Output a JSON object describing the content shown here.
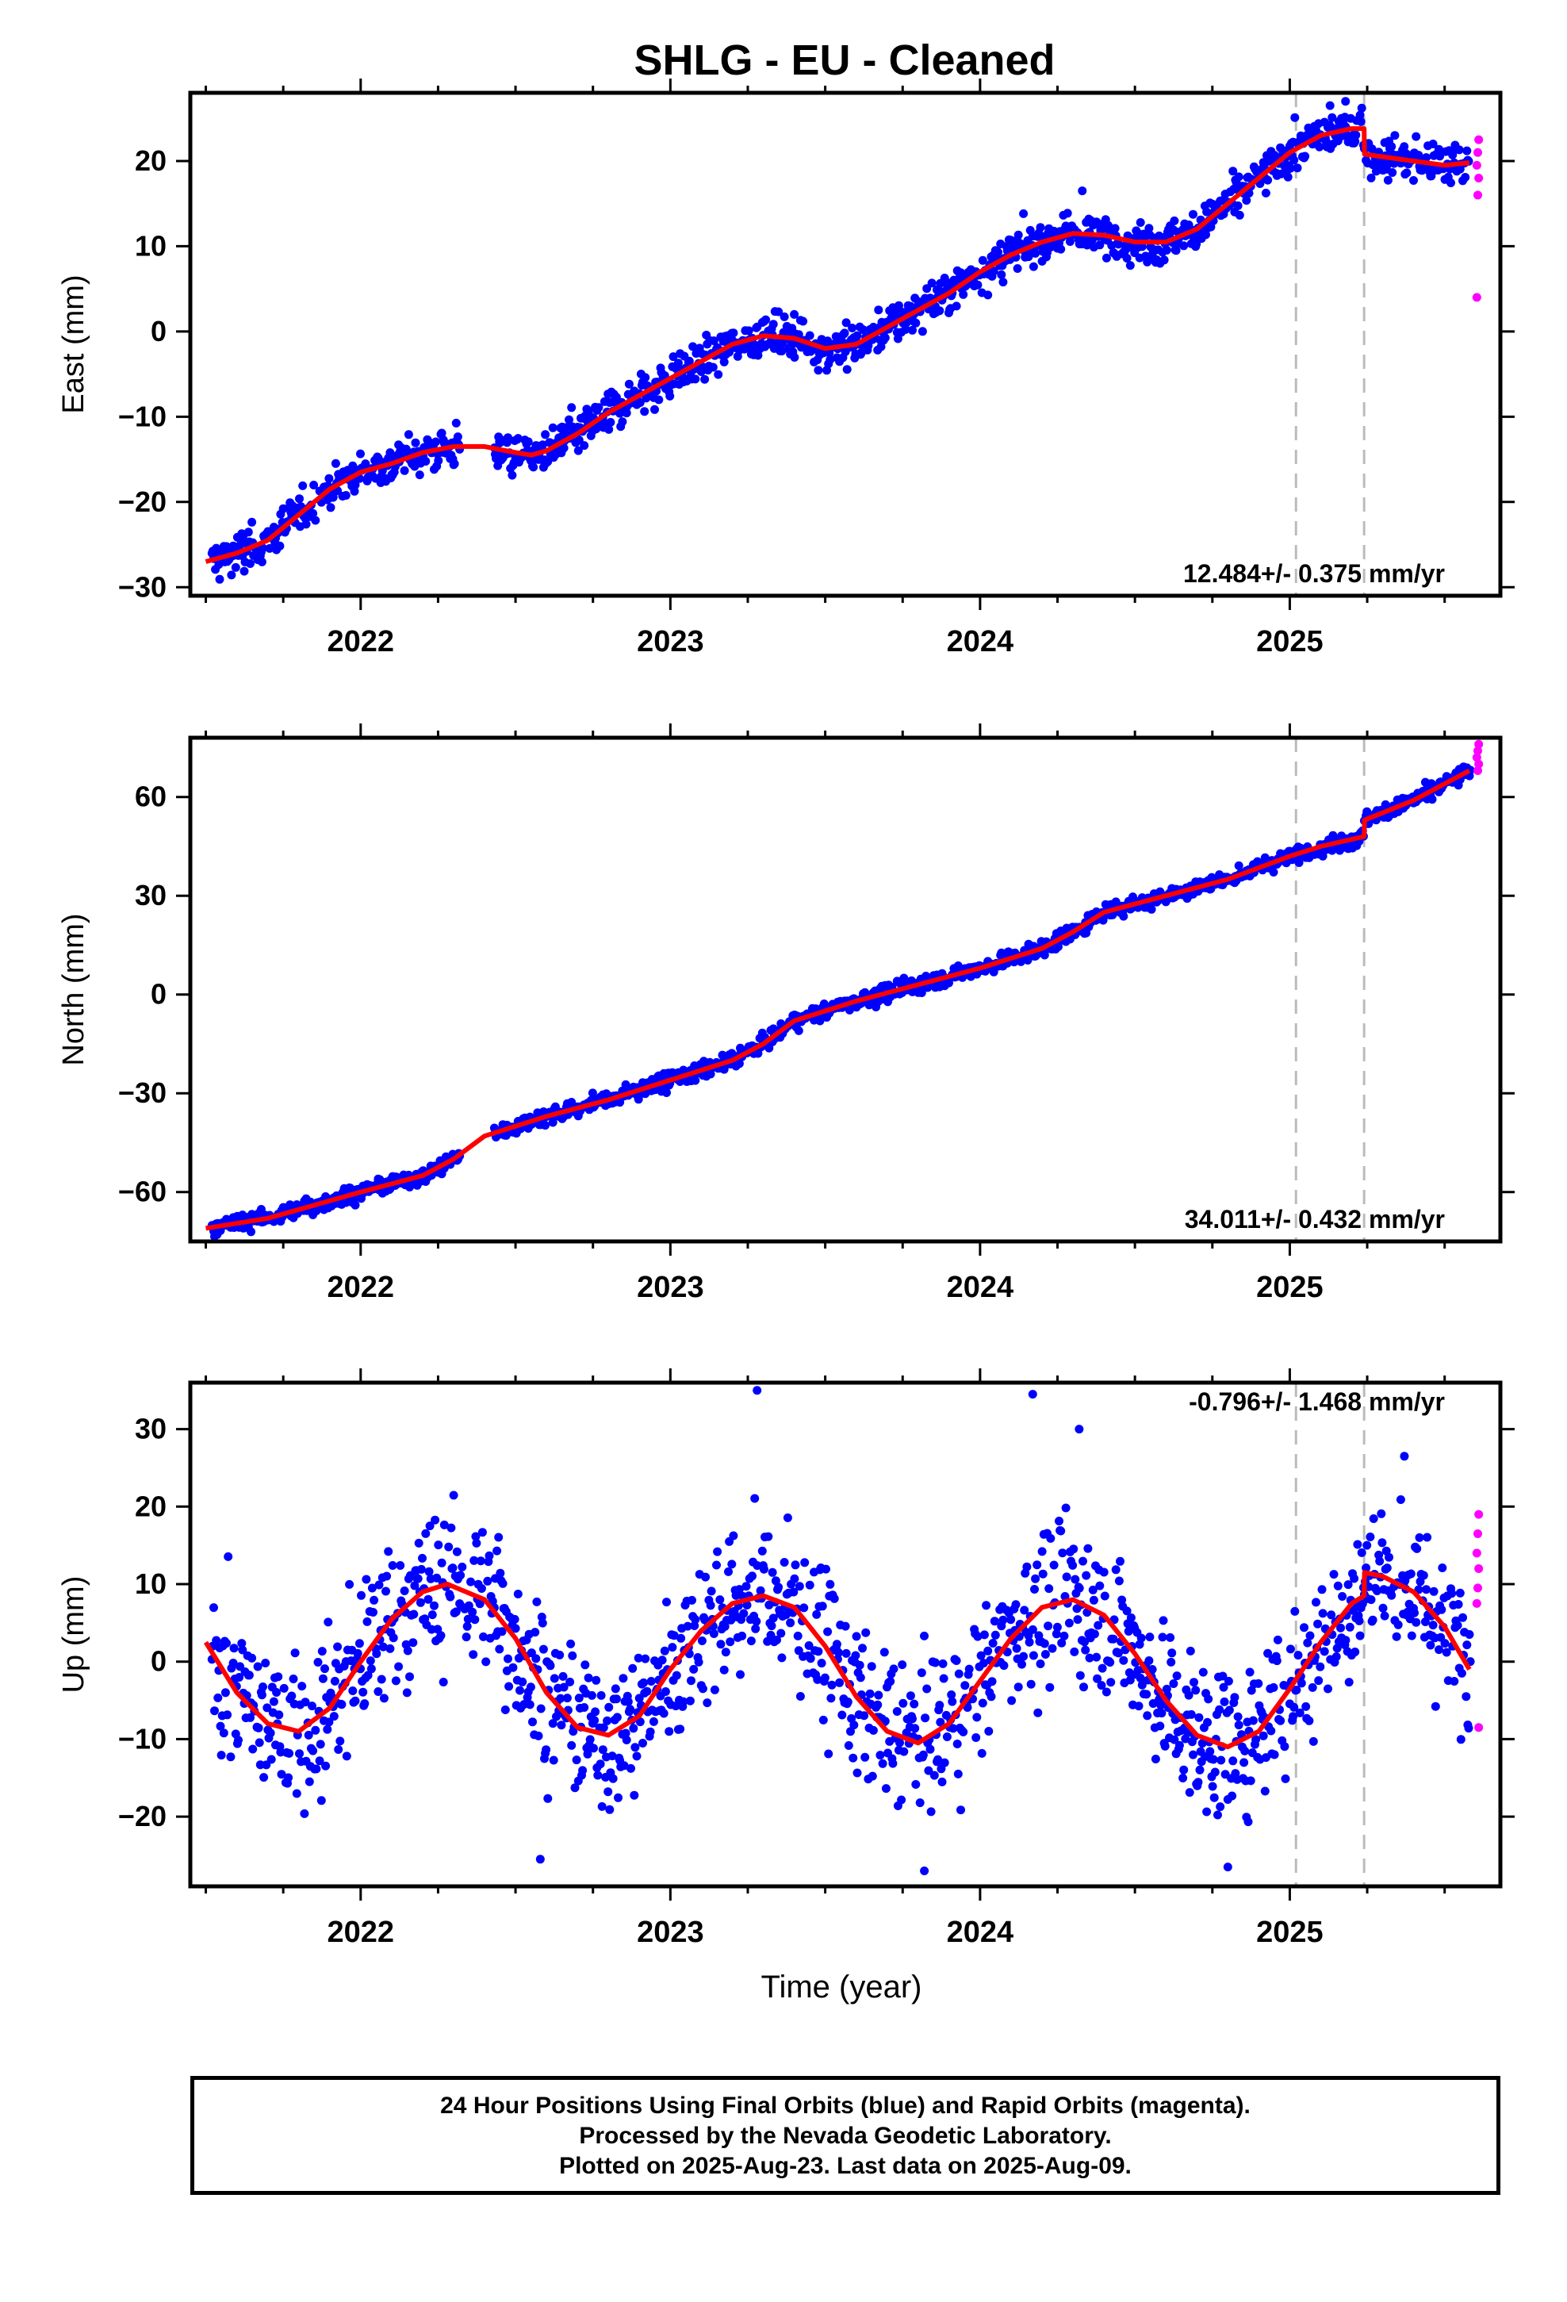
{
  "chart_data": {
    "type": "scatter",
    "title": "SHLG  - EU - Cleaned",
    "xlabel": "Time (year)",
    "xlim": [
      2021.45,
      2025.68
    ],
    "xticks": [
      2022,
      2023,
      2024,
      2025
    ],
    "break_lines": [
      2025.02,
      2025.24
    ],
    "last_rapid_epoch": 2025.61,
    "colors": {
      "final": "#0000ff",
      "rapid": "#ff00ff",
      "model": "#ff0000",
      "breaks": "#bbbbbb"
    },
    "panels": [
      {
        "id": "east",
        "ylabel": "East (mm)",
        "ylim": [
          -31,
          28
        ],
        "yticks": [
          -30,
          -20,
          -10,
          0,
          10,
          20
        ],
        "rate_label": "12.484+/- 0.375 mm/yr",
        "model": [
          [
            2021.5,
            -27.0
          ],
          [
            2021.6,
            -26.0
          ],
          [
            2021.7,
            -24.5
          ],
          [
            2021.8,
            -21.5
          ],
          [
            2021.9,
            -18.5
          ],
          [
            2022.0,
            -16.5
          ],
          [
            2022.1,
            -15.5
          ],
          [
            2022.2,
            -14.2
          ],
          [
            2022.3,
            -13.5
          ],
          [
            2022.4,
            -13.5
          ],
          [
            2022.5,
            -14.2
          ],
          [
            2022.55,
            -14.5
          ],
          [
            2022.6,
            -14.0
          ],
          [
            2022.7,
            -12.0
          ],
          [
            2022.8,
            -9.5
          ],
          [
            2022.9,
            -7.5
          ],
          [
            2023.0,
            -5.5
          ],
          [
            2023.1,
            -3.5
          ],
          [
            2023.2,
            -1.5
          ],
          [
            2023.3,
            -0.5
          ],
          [
            2023.4,
            -0.8
          ],
          [
            2023.5,
            -2.0
          ],
          [
            2023.6,
            -1.5
          ],
          [
            2023.7,
            0.5
          ],
          [
            2023.8,
            2.5
          ],
          [
            2023.9,
            4.5
          ],
          [
            2024.0,
            7.0
          ],
          [
            2024.1,
            9.0
          ],
          [
            2024.2,
            10.5
          ],
          [
            2024.3,
            11.5
          ],
          [
            2024.4,
            11.3
          ],
          [
            2024.5,
            10.5
          ],
          [
            2024.6,
            10.5
          ],
          [
            2024.7,
            12.0
          ],
          [
            2024.8,
            15.0
          ],
          [
            2024.9,
            18.0
          ],
          [
            2025.0,
            21.0
          ],
          [
            2025.1,
            23.0
          ],
          [
            2025.2,
            23.8
          ],
          [
            2025.24,
            23.8
          ],
          [
            2025.241,
            20.8
          ],
          [
            2025.3,
            20.5
          ],
          [
            2025.4,
            20.0
          ],
          [
            2025.5,
            19.5
          ],
          [
            2025.58,
            19.8
          ]
        ],
        "residual_sd": 1.2,
        "gaps": [
          [
            2022.32,
            2022.43
          ]
        ],
        "rapid_values": [
          22.5,
          21.0,
          19.5,
          18.0,
          16.0,
          4.0
        ],
        "outliers": [
          [
            2025.13,
            26.5
          ],
          [
            2025.18,
            27.0
          ],
          [
            2024.33,
            16.5
          ],
          [
            2023.4,
            2.0
          ]
        ]
      },
      {
        "id": "north",
        "ylabel": "North (mm)",
        "ylim": [
          -75,
          78
        ],
        "yticks": [
          -60,
          -30,
          0,
          30,
          60
        ],
        "rate_label": "34.011+/- 0.432 mm/yr",
        "model": [
          [
            2021.5,
            -71.0
          ],
          [
            2021.7,
            -68.0
          ],
          [
            2022.0,
            -60.0
          ],
          [
            2022.2,
            -55.0
          ],
          [
            2022.3,
            -50.0
          ],
          [
            2022.4,
            -43.0
          ],
          [
            2022.6,
            -37.0
          ],
          [
            2022.8,
            -32.0
          ],
          [
            2023.0,
            -26.0
          ],
          [
            2023.2,
            -20.0
          ],
          [
            2023.3,
            -15.0
          ],
          [
            2023.4,
            -8.0
          ],
          [
            2023.6,
            -2.0
          ],
          [
            2023.8,
            3.0
          ],
          [
            2024.0,
            8.0
          ],
          [
            2024.2,
            14.0
          ],
          [
            2024.3,
            19.0
          ],
          [
            2024.4,
            25.0
          ],
          [
            2024.6,
            30.0
          ],
          [
            2024.8,
            35.0
          ],
          [
            2025.0,
            42.0
          ],
          [
            2025.1,
            45.0
          ],
          [
            2025.24,
            48.0
          ],
          [
            2025.241,
            53.0
          ],
          [
            2025.4,
            59.0
          ],
          [
            2025.58,
            68.0
          ]
        ],
        "residual_sd": 1.3,
        "gaps": [
          [
            2022.32,
            2022.43
          ]
        ],
        "rapid_values": [
          76.0,
          74.0,
          72.0,
          70.0,
          68.0
        ],
        "outliers": []
      },
      {
        "id": "up",
        "ylabel": "Up (mm)",
        "ylim": [
          -29,
          36
        ],
        "yticks": [
          -20,
          -10,
          0,
          10,
          20,
          30
        ],
        "rate_label": "-0.796+/- 1.468 mm/yr",
        "model": [
          [
            2021.5,
            2.5
          ],
          [
            2021.6,
            -4.0
          ],
          [
            2021.7,
            -8.0
          ],
          [
            2021.8,
            -9.0
          ],
          [
            2021.9,
            -6.0
          ],
          [
            2022.0,
            0.0
          ],
          [
            2022.1,
            5.5
          ],
          [
            2022.2,
            9.0
          ],
          [
            2022.28,
            10.0
          ],
          [
            2022.4,
            8.0
          ],
          [
            2022.5,
            3.0
          ],
          [
            2022.6,
            -4.0
          ],
          [
            2022.7,
            -8.5
          ],
          [
            2022.8,
            -9.5
          ],
          [
            2022.9,
            -7.0
          ],
          [
            2023.0,
            -1.0
          ],
          [
            2023.1,
            4.0
          ],
          [
            2023.2,
            7.5
          ],
          [
            2023.3,
            8.5
          ],
          [
            2023.4,
            7.0
          ],
          [
            2023.5,
            2.0
          ],
          [
            2023.6,
            -4.5
          ],
          [
            2023.7,
            -9.0
          ],
          [
            2023.8,
            -10.5
          ],
          [
            2023.9,
            -8.0
          ],
          [
            2024.0,
            -2.5
          ],
          [
            2024.1,
            3.0
          ],
          [
            2024.2,
            7.0
          ],
          [
            2024.3,
            8.0
          ],
          [
            2024.4,
            6.0
          ],
          [
            2024.5,
            1.0
          ],
          [
            2024.6,
            -5.0
          ],
          [
            2024.7,
            -9.5
          ],
          [
            2024.8,
            -11.0
          ],
          [
            2024.9,
            -9.0
          ],
          [
            2025.0,
            -3.5
          ],
          [
            2025.1,
            2.5
          ],
          [
            2025.2,
            7.5
          ],
          [
            2025.24,
            8.5
          ],
          [
            2025.241,
            11.5
          ],
          [
            2025.3,
            11.0
          ],
          [
            2025.4,
            9.0
          ],
          [
            2025.5,
            4.5
          ],
          [
            2025.58,
            -1.0
          ]
        ],
        "residual_sd": 5.0,
        "gaps": [],
        "rapid_values": [
          19.0,
          16.5,
          14.0,
          12.0,
          9.5,
          7.5,
          -8.5
        ],
        "outliers": [
          [
            2023.28,
            35.0
          ],
          [
            2024.17,
            34.5
          ],
          [
            2024.32,
            30.0
          ],
          [
            2025.37,
            26.5
          ],
          [
            2022.58,
            -25.5
          ],
          [
            2023.82,
            -27.0
          ],
          [
            2024.8,
            -26.5
          ]
        ]
      }
    ]
  },
  "footer": {
    "line1": "24 Hour Positions Using Final Orbits (blue) and Rapid Orbits (magenta).",
    "line2": "Processed by the Nevada Geodetic Laboratory.",
    "line3": "Plotted on 2025-Aug-23. Last data on 2025-Aug-09."
  }
}
